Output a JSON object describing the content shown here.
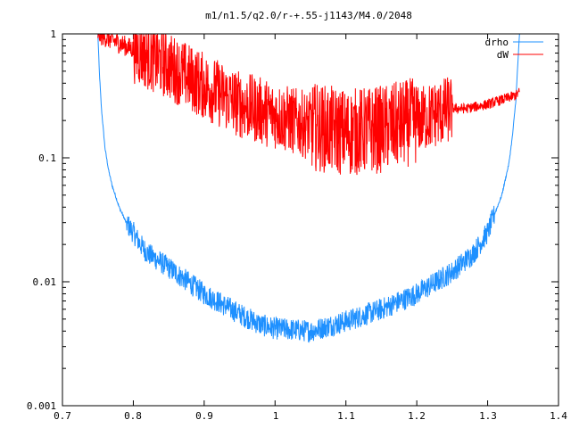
{
  "chart_data": {
    "type": "line",
    "title": "m1/n1.5/q2.0/r-+.55-j1143/M4.0/2048",
    "xlabel": "",
    "ylabel": "",
    "xlim": [
      0.7,
      1.4
    ],
    "ylim": [
      0.001,
      1
    ],
    "yscale": "log",
    "grid": false,
    "legend_position": "top-right",
    "x_ticks": [
      "0.7",
      "0.8",
      "0.9",
      "1",
      "1.1",
      "1.2",
      "1.3",
      "1.4"
    ],
    "y_ticks": [
      "0.001",
      "0.01",
      "0.1",
      "1"
    ],
    "series": [
      {
        "name": "drho",
        "color": "#1e90ff",
        "noise": 0.18,
        "points": [
          [
            0.75,
            1.0
          ],
          [
            0.752,
            0.5
          ],
          [
            0.755,
            0.25
          ],
          [
            0.76,
            0.12
          ],
          [
            0.765,
            0.08
          ],
          [
            0.77,
            0.06
          ],
          [
            0.78,
            0.04
          ],
          [
            0.79,
            0.03
          ],
          [
            0.8,
            0.025
          ],
          [
            0.81,
            0.02
          ],
          [
            0.82,
            0.017
          ],
          [
            0.85,
            0.013
          ],
          [
            0.9,
            0.008
          ],
          [
            0.95,
            0.0055
          ],
          [
            0.98,
            0.0045
          ],
          [
            1.0,
            0.0042
          ],
          [
            1.05,
            0.004
          ],
          [
            1.1,
            0.0048
          ],
          [
            1.15,
            0.006
          ],
          [
            1.2,
            0.008
          ],
          [
            1.25,
            0.012
          ],
          [
            1.28,
            0.017
          ],
          [
            1.3,
            0.025
          ],
          [
            1.32,
            0.05
          ],
          [
            1.33,
            0.09
          ],
          [
            1.335,
            0.15
          ],
          [
            1.34,
            0.3
          ],
          [
            1.342,
            0.5
          ],
          [
            1.345,
            1.0
          ]
        ]
      },
      {
        "name": "dW",
        "color": "#ff0000",
        "noise": 0.55,
        "points": [
          [
            0.75,
            1.0
          ],
          [
            0.8,
            0.75
          ],
          [
            0.85,
            0.55
          ],
          [
            0.9,
            0.38
          ],
          [
            0.95,
            0.27
          ],
          [
            1.0,
            0.22
          ],
          [
            1.05,
            0.18
          ],
          [
            1.1,
            0.16
          ],
          [
            1.15,
            0.17
          ],
          [
            1.2,
            0.2
          ],
          [
            1.25,
            0.25
          ],
          [
            1.27,
            0.25
          ],
          [
            1.3,
            0.27
          ],
          [
            1.34,
            0.32
          ],
          [
            1.345,
            0.34
          ]
        ]
      }
    ]
  }
}
